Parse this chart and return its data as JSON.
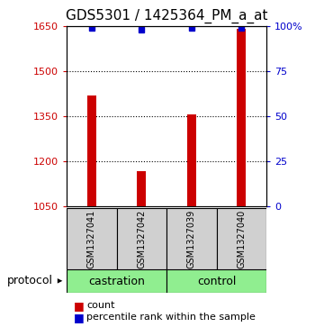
{
  "title": "GDS5301 / 1425364_PM_a_at",
  "samples": [
    "GSM1327041",
    "GSM1327042",
    "GSM1327039",
    "GSM1327040"
  ],
  "bar_values": [
    1420,
    1165,
    1355,
    1640
  ],
  "percentile_values": [
    99,
    98,
    99,
    99
  ],
  "ylim_left": [
    1050,
    1650
  ],
  "ylim_right": [
    0,
    100
  ],
  "yticks_left": [
    1050,
    1200,
    1350,
    1500,
    1650
  ],
  "yticks_right": [
    0,
    25,
    50,
    75,
    100
  ],
  "bar_color": "#cc0000",
  "marker_color": "#0000cc",
  "bar_width": 0.18,
  "protocols": [
    "castration",
    "castration",
    "control",
    "control"
  ],
  "protocol_label": "protocol",
  "castration_color": "#90ee90",
  "control_color": "#90ee90",
  "sample_box_color": "#d0d0d0",
  "title_fontsize": 11,
  "tick_fontsize": 8,
  "sample_fontsize": 7,
  "proto_fontsize": 9,
  "legend_fontsize": 8
}
